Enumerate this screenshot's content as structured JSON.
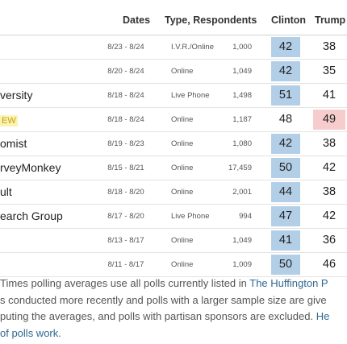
{
  "headers": {
    "dates": "Dates",
    "type": "Type, Respondents",
    "clinton": "Clinton",
    "trump": "Trump"
  },
  "rows": [
    {
      "pollster": "",
      "badge": "",
      "dates": "8/23 - 8/24",
      "type": "I.V.R./Online",
      "respondents": "1,000",
      "clinton": "42",
      "trump": "38",
      "winner": "clinton"
    },
    {
      "pollster": "",
      "badge": "",
      "dates": "8/20 - 8/24",
      "type": "Online",
      "respondents": "1,049",
      "clinton": "42",
      "trump": "35",
      "winner": "clinton"
    },
    {
      "pollster": "versity",
      "badge": "",
      "dates": "8/18 - 8/24",
      "type": "Live Phone",
      "respondents": "1,498",
      "clinton": "51",
      "trump": "41",
      "winner": "clinton"
    },
    {
      "pollster": "",
      "badge": "EW",
      "dates": "8/18 - 8/24",
      "type": "Online",
      "respondents": "1,187",
      "clinton": "48",
      "trump": "49",
      "winner": "trump"
    },
    {
      "pollster": "omist",
      "badge": "",
      "dates": "8/19 - 8/23",
      "type": "Online",
      "respondents": "1,080",
      "clinton": "42",
      "trump": "38",
      "winner": "clinton"
    },
    {
      "pollster": "rveyMonkey",
      "badge": "",
      "dates": "8/15 - 8/21",
      "type": "Online",
      "respondents": "17,459",
      "clinton": "50",
      "trump": "42",
      "winner": "clinton"
    },
    {
      "pollster": "ult",
      "badge": "",
      "dates": "8/18 - 8/20",
      "type": "Online",
      "respondents": "2,001",
      "clinton": "44",
      "trump": "38",
      "winner": "clinton"
    },
    {
      "pollster": "earch Group",
      "badge": "",
      "dates": "8/17 - 8/20",
      "type": "Live Phone",
      "respondents": "994",
      "clinton": "47",
      "trump": "42",
      "winner": "clinton"
    },
    {
      "pollster": "",
      "badge": "",
      "dates": "8/13 - 8/17",
      "type": "Online",
      "respondents": "1,049",
      "clinton": "41",
      "trump": "36",
      "winner": "clinton"
    },
    {
      "pollster": "",
      "badge": "",
      "dates": "8/11 - 8/17",
      "type": "Online",
      "respondents": "1,009",
      "clinton": "50",
      "trump": "46",
      "winner": "clinton"
    }
  ],
  "note": {
    "line1_text": "Times polling averages use all polls currently listed in ",
    "line1_link": "The Huffington P",
    "line2_text": "s conducted more recently and polls with a larger sample size are give",
    "line3_text": "puting the averages, and polls with partisan sponsors are excluded. ",
    "line3_link": "He",
    "line4_link": " of polls work."
  },
  "colors": {
    "clinton_highlight": "#b3cfe8",
    "trump_highlight": "#f6cccc",
    "link": "#326891",
    "new_badge_bg": "#fbf3b6"
  }
}
